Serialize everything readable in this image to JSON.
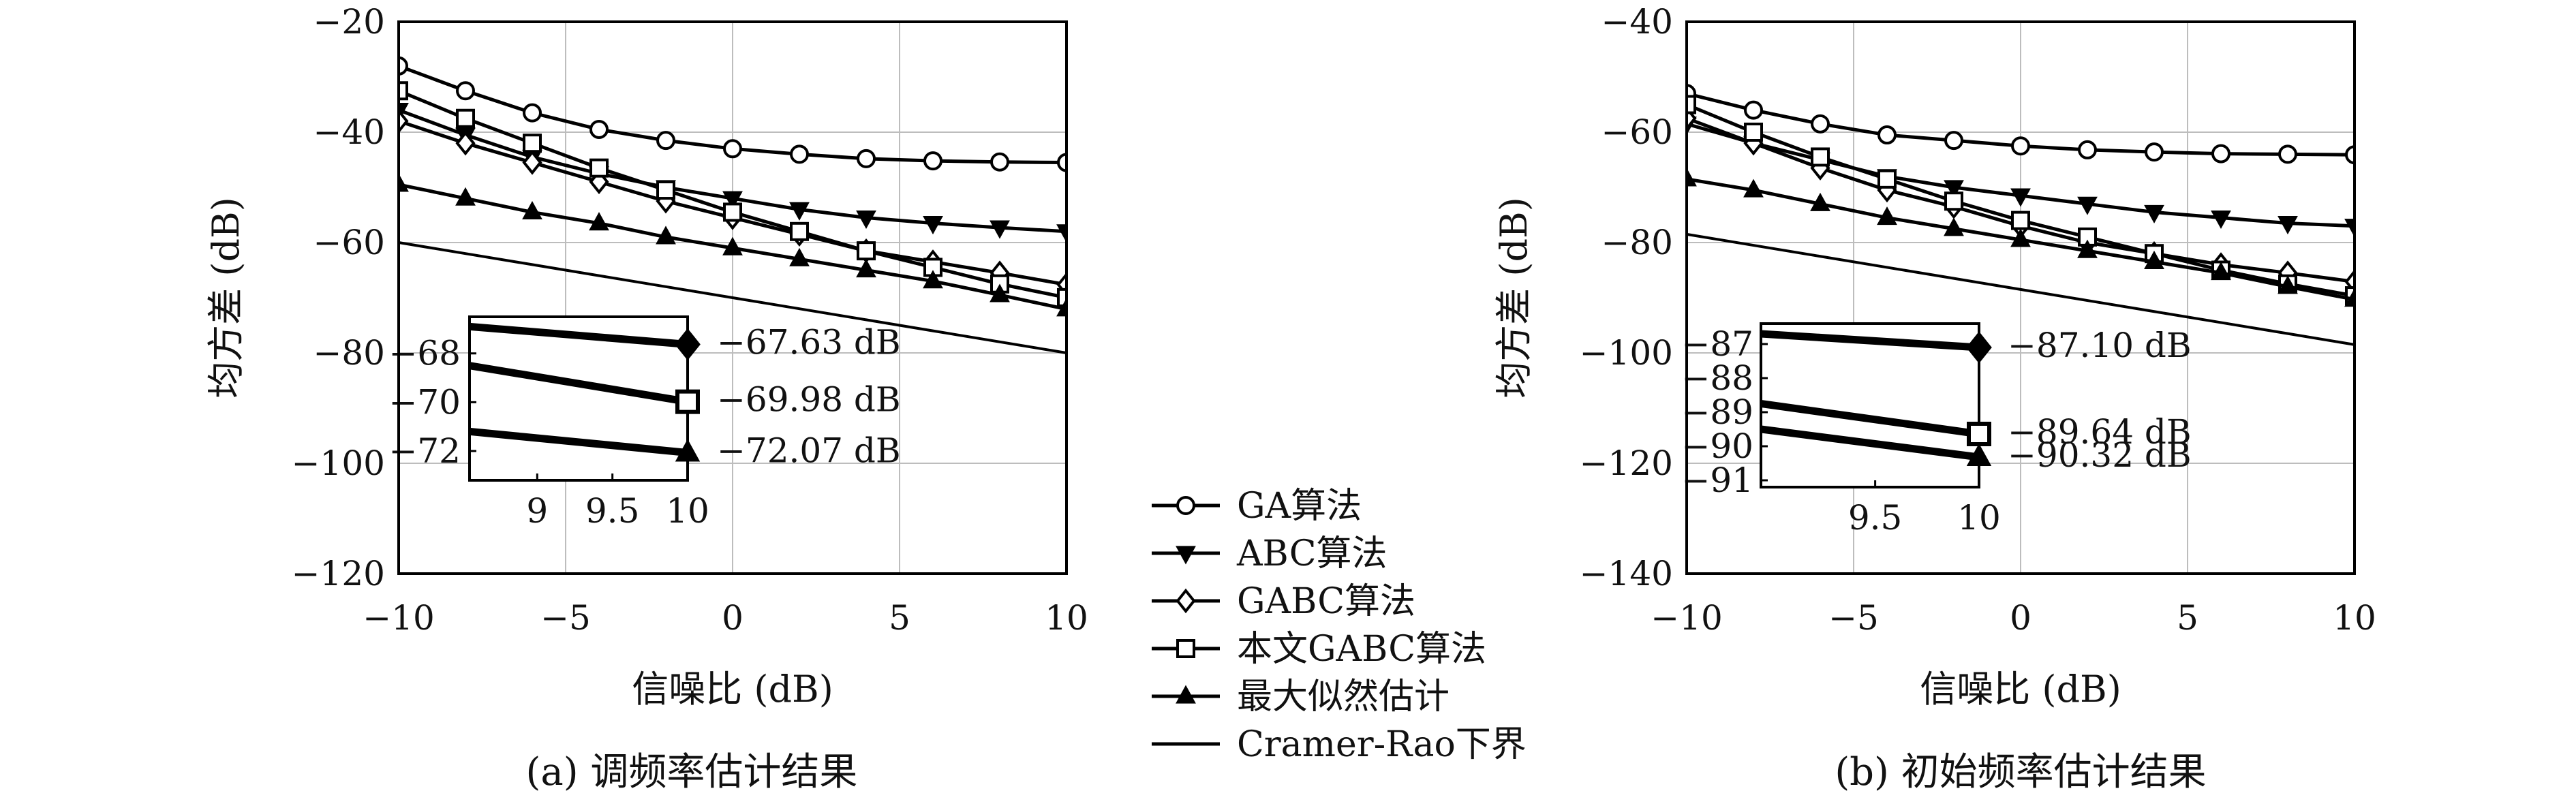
{
  "legend": {
    "items": [
      {
        "label": "GA算法",
        "marker": "circle"
      },
      {
        "label": "ABC算法",
        "marker": "triangle-down"
      },
      {
        "label": "GABC算法",
        "marker": "diamond"
      },
      {
        "label": "本文GABC算法",
        "marker": "square"
      },
      {
        "label": "最大似然估计",
        "marker": "triangle-up"
      },
      {
        "label": "Cramer-Rao下界",
        "marker": "none"
      }
    ]
  },
  "chart_data": [
    {
      "type": "line",
      "title": "(a) 调频率估计结果",
      "xlabel": "信噪比 (dB)",
      "ylabel": "均方差 (dB)",
      "xlim": [
        -10,
        10
      ],
      "ylim": [
        -120,
        -20
      ],
      "xticks": [
        -10,
        -5,
        0,
        5,
        10
      ],
      "yticks": [
        -20,
        -40,
        -60,
        -80,
        -100,
        -120
      ],
      "grid": true,
      "x": [
        -10,
        -8,
        -6,
        -4,
        -2,
        0,
        2,
        4,
        6,
        8,
        10
      ],
      "series": [
        {
          "name": "GA算法",
          "marker": "circle",
          "values": [
            -28,
            -32.5,
            -36.5,
            -39.5,
            -41.5,
            -43,
            -44,
            -44.8,
            -45.2,
            -45.4,
            -45.5
          ]
        },
        {
          "name": "ABC算法",
          "marker": "triangle-down",
          "values": [
            -36,
            -40.5,
            -44.5,
            -47.5,
            -50,
            -52,
            -54,
            -55.5,
            -56.5,
            -57.3,
            -58
          ]
        },
        {
          "name": "GABC算法",
          "marker": "diamond",
          "values": [
            -38,
            -42,
            -45.5,
            -49,
            -52.5,
            -55.5,
            -58.5,
            -61.5,
            -63.5,
            -65.5,
            -67.63
          ]
        },
        {
          "name": "本文GABC算法",
          "marker": "square",
          "values": [
            -32.5,
            -37.5,
            -42,
            -46.5,
            -50.5,
            -54.5,
            -58,
            -61.5,
            -64.5,
            -67.5,
            -69.98
          ]
        },
        {
          "name": "最大似然估计",
          "marker": "triangle-up",
          "values": [
            -49.5,
            -52,
            -54.5,
            -56.5,
            -59,
            -61,
            -63,
            -65,
            -67,
            -69.5,
            -72.07
          ]
        },
        {
          "name": "Cramer-Rao下界",
          "marker": "none",
          "values": [
            -60,
            -62,
            -64,
            -66,
            -68,
            -70,
            -72,
            -74,
            -76,
            -78,
            -80
          ]
        }
      ],
      "inset": {
        "xlim": [
          8.55,
          10
        ],
        "ylim": [
          -73.2,
          -66.5
        ],
        "xticks": [
          9,
          9.5,
          10
        ],
        "yticks": [
          -68,
          -70,
          -72
        ],
        "lines": [
          {
            "marker": "diamond",
            "y": [
              -66.9,
              -67.63
            ]
          },
          {
            "marker": "square",
            "y": [
              -68.5,
              -69.98
            ]
          },
          {
            "marker": "triangle-up",
            "y": [
              -71.2,
              -72.07
            ]
          }
        ],
        "labels": [
          "−67.63 dB",
          "−69.98 dB",
          "−72.07 dB"
        ]
      }
    },
    {
      "type": "line",
      "title": "(b) 初始频率估计结果",
      "xlabel": "信噪比 (dB)",
      "ylabel": "均方差 (dB)",
      "xlim": [
        -10,
        10
      ],
      "ylim": [
        -140,
        -40
      ],
      "xticks": [
        -10,
        -5,
        0,
        5,
        10
      ],
      "yticks": [
        -40,
        -60,
        -80,
        -100,
        -120,
        -140
      ],
      "grid": true,
      "x": [
        -10,
        -8,
        -6,
        -4,
        -2,
        0,
        2,
        4,
        6,
        8,
        10
      ],
      "series": [
        {
          "name": "GA算法",
          "marker": "circle",
          "values": [
            -53,
            -56,
            -58.5,
            -60.5,
            -61.5,
            -62.5,
            -63.2,
            -63.6,
            -63.9,
            -64,
            -64.1
          ]
        },
        {
          "name": "ABC算法",
          "marker": "triangle-down",
          "values": [
            -58.5,
            -62,
            -65,
            -68,
            -70,
            -71.5,
            -73,
            -74.5,
            -75.5,
            -76.5,
            -77
          ]
        },
        {
          "name": "GABC算法",
          "marker": "diamond",
          "values": [
            -57.5,
            -62,
            -66.5,
            -70.5,
            -73.5,
            -77,
            -80,
            -82,
            -84,
            -85.5,
            -87.1
          ]
        },
        {
          "name": "本文GABC算法",
          "marker": "square",
          "values": [
            -55,
            -60,
            -64.5,
            -68.5,
            -72.5,
            -76,
            -79,
            -82,
            -85,
            -87.5,
            -89.64
          ]
        },
        {
          "name": "最大似然估计",
          "marker": "triangle-up",
          "values": [
            -68.5,
            -70.5,
            -73,
            -75.5,
            -77.5,
            -79.5,
            -81.5,
            -83.5,
            -85.5,
            -88,
            -90.32
          ]
        },
        {
          "name": "Cramer-Rao下界",
          "marker": "none",
          "values": [
            -78.5,
            -80.5,
            -82.5,
            -84.5,
            -86.5,
            -88.5,
            -90.5,
            -92.5,
            -94.5,
            -96.5,
            -98.5
          ]
        }
      ],
      "inset": {
        "xlim": [
          8.95,
          10
        ],
        "ylim": [
          -91.2,
          -86.4
        ],
        "xticks": [
          9.5,
          10
        ],
        "yticks": [
          -87,
          -88,
          -89,
          -90,
          -91
        ],
        "lines": [
          {
            "marker": "diamond",
            "y": [
              -86.7,
              -87.1
            ]
          },
          {
            "marker": "square",
            "y": [
              -88.75,
              -89.64
            ]
          },
          {
            "marker": "triangle-up",
            "y": [
              -89.5,
              -90.32
            ]
          }
        ],
        "labels": [
          "−87.10 dB",
          "−89.64 dB",
          "−90.32 dB"
        ]
      }
    }
  ]
}
